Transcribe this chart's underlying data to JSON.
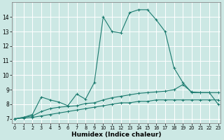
{
  "xlabel": "Humidex (Indice chaleur)",
  "bg_color": "#cce8e4",
  "grid_color": "#ffffff",
  "line_color": "#1a7a6e",
  "x_ticks": [
    0,
    1,
    2,
    3,
    4,
    5,
    6,
    7,
    8,
    9,
    10,
    11,
    12,
    13,
    14,
    15,
    16,
    17,
    18,
    19,
    20,
    21,
    22,
    23
  ],
  "y_ticks": [
    7,
    8,
    9,
    10,
    11,
    12,
    13,
    14
  ],
  "ylim": [
    6.7,
    15.0
  ],
  "xlim": [
    -0.3,
    23.3
  ],
  "line1_x": [
    0,
    1,
    2,
    3,
    4,
    5,
    6,
    7,
    8,
    9,
    10,
    11,
    12,
    13,
    14,
    15,
    16,
    17,
    18,
    19,
    20,
    21,
    22,
    23
  ],
  "line1_y": [
    7.0,
    7.05,
    7.1,
    7.2,
    7.3,
    7.4,
    7.5,
    7.6,
    7.7,
    7.8,
    7.9,
    8.0,
    8.1,
    8.1,
    8.2,
    8.2,
    8.3,
    8.3,
    8.3,
    8.3,
    8.3,
    8.3,
    8.3,
    8.3
  ],
  "line2_x": [
    0,
    1,
    2,
    3,
    4,
    5,
    6,
    7,
    8,
    9,
    10,
    11,
    12,
    13,
    14,
    15,
    16,
    17,
    18,
    19,
    20,
    21,
    22,
    23
  ],
  "line2_y": [
    7.0,
    7.1,
    7.2,
    7.5,
    7.7,
    7.8,
    7.85,
    7.9,
    8.05,
    8.1,
    8.3,
    8.45,
    8.55,
    8.65,
    8.75,
    8.8,
    8.85,
    8.9,
    9.0,
    9.35,
    8.85,
    8.8,
    8.8,
    8.8
  ],
  "line3_x": [
    0,
    1,
    2,
    3,
    4,
    5,
    6,
    7,
    8,
    9,
    10,
    11,
    12,
    13,
    14,
    15,
    16,
    17,
    18,
    19,
    20,
    21,
    22,
    23
  ],
  "line3_y": [
    7.0,
    7.1,
    7.3,
    8.5,
    8.3,
    8.15,
    7.9,
    8.7,
    8.35,
    9.5,
    14.0,
    13.0,
    12.9,
    14.3,
    14.5,
    14.5,
    13.8,
    13.0,
    10.5,
    9.5,
    8.8,
    8.8,
    8.8,
    8.0
  ]
}
